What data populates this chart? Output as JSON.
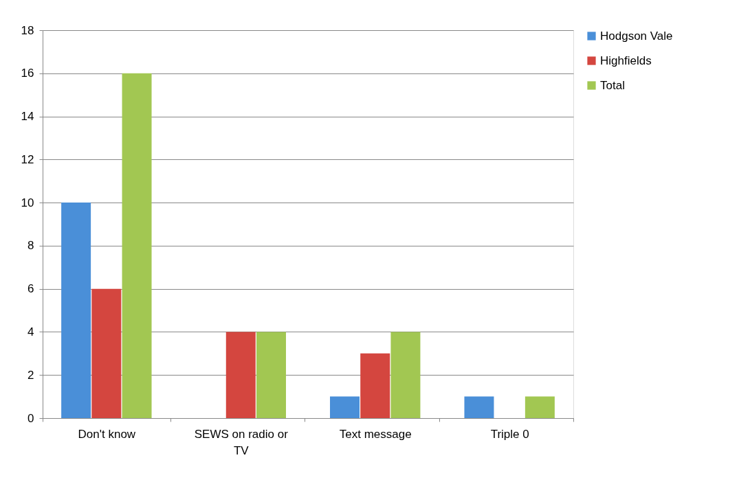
{
  "chart_data": {
    "type": "bar",
    "categories": [
      "Don't know",
      "SEWS on radio or TV",
      "Text message",
      "Triple 0"
    ],
    "series": [
      {
        "name": "Hodgson Vale",
        "color": "#4a8fd8",
        "values": [
          10,
          0,
          1,
          1
        ]
      },
      {
        "name": "Highfields",
        "color": "#d4463f",
        "values": [
          6,
          4,
          3,
          0
        ]
      },
      {
        "name": "Total",
        "color": "#a2c752",
        "values": [
          16,
          4,
          4,
          1
        ]
      }
    ],
    "ylim": [
      0,
      18
    ],
    "yticks": [
      0,
      2,
      4,
      6,
      8,
      10,
      12,
      14,
      16,
      18
    ],
    "grid": "y",
    "legend": "right"
  }
}
